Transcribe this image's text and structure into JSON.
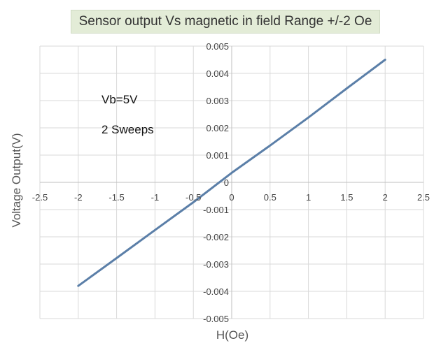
{
  "chart_data": {
    "type": "line",
    "title": "Sensor output  Vs magnetic in field Range +/-2 Oe",
    "xlabel": "H(Oe)",
    "ylabel": "Voltage Output(V)",
    "xlim": [
      -2.5,
      2.5
    ],
    "ylim": [
      -0.005,
      0.005
    ],
    "x_ticks": [
      "-2.5",
      "-2",
      "-1.5",
      "-1",
      "-0.5",
      "0",
      "0.5",
      "1",
      "1.5",
      "2",
      "2.5"
    ],
    "y_ticks": [
      "0.005",
      "0.004",
      "0.003",
      "0.002",
      "0.001",
      "0",
      "-0.001",
      "-0.002",
      "-0.003",
      "-0.004",
      "-0.005"
    ],
    "grid": true,
    "annotations": [
      "Vb=5V",
      "2 Sweeps"
    ],
    "series": [
      {
        "x": [
          -2,
          -1.5,
          -1,
          -0.5,
          0,
          0.5,
          1,
          1.5,
          2
        ],
        "y": [
          -0.0038,
          -0.00278,
          -0.00175,
          -0.00073,
          0.00035,
          0.00135,
          0.00238,
          0.00345,
          0.0045
        ],
        "color": "#5b7fa8"
      }
    ]
  }
}
